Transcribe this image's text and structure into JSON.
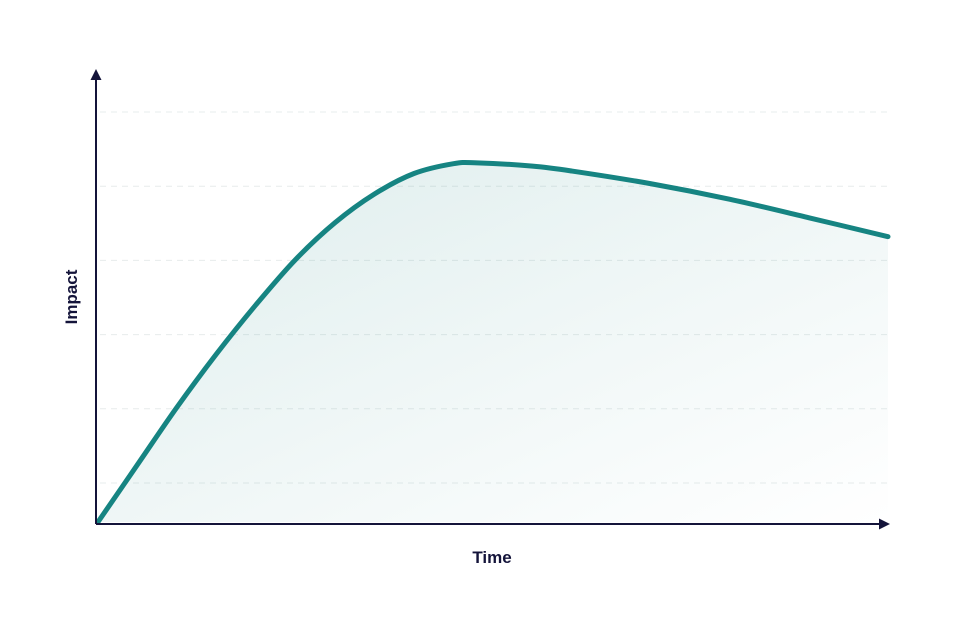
{
  "chart_data": {
    "type": "area",
    "title": "",
    "xlabel": "Time",
    "ylabel": "Impact",
    "grid": true,
    "gridlines": 6,
    "xlim": [
      0,
      100
    ],
    "ylim": [
      0,
      100
    ],
    "series": [
      {
        "x": [
          0,
          5,
          10,
          15,
          20,
          25,
          30,
          35,
          40,
          45,
          48,
          55,
          60,
          70,
          80,
          90,
          100
        ],
        "values": [
          0,
          14,
          28,
          41,
          53,
          64,
          73,
          80,
          85,
          87.4,
          87.6,
          86.8,
          85.6,
          82.5,
          78.7,
          74.2,
          69.6
        ]
      }
    ]
  },
  "colors": {
    "line": "#168482",
    "fill": "#2f8f8c",
    "axis": "#14143a",
    "grid": "#e7ecec",
    "label": "#14143a"
  }
}
